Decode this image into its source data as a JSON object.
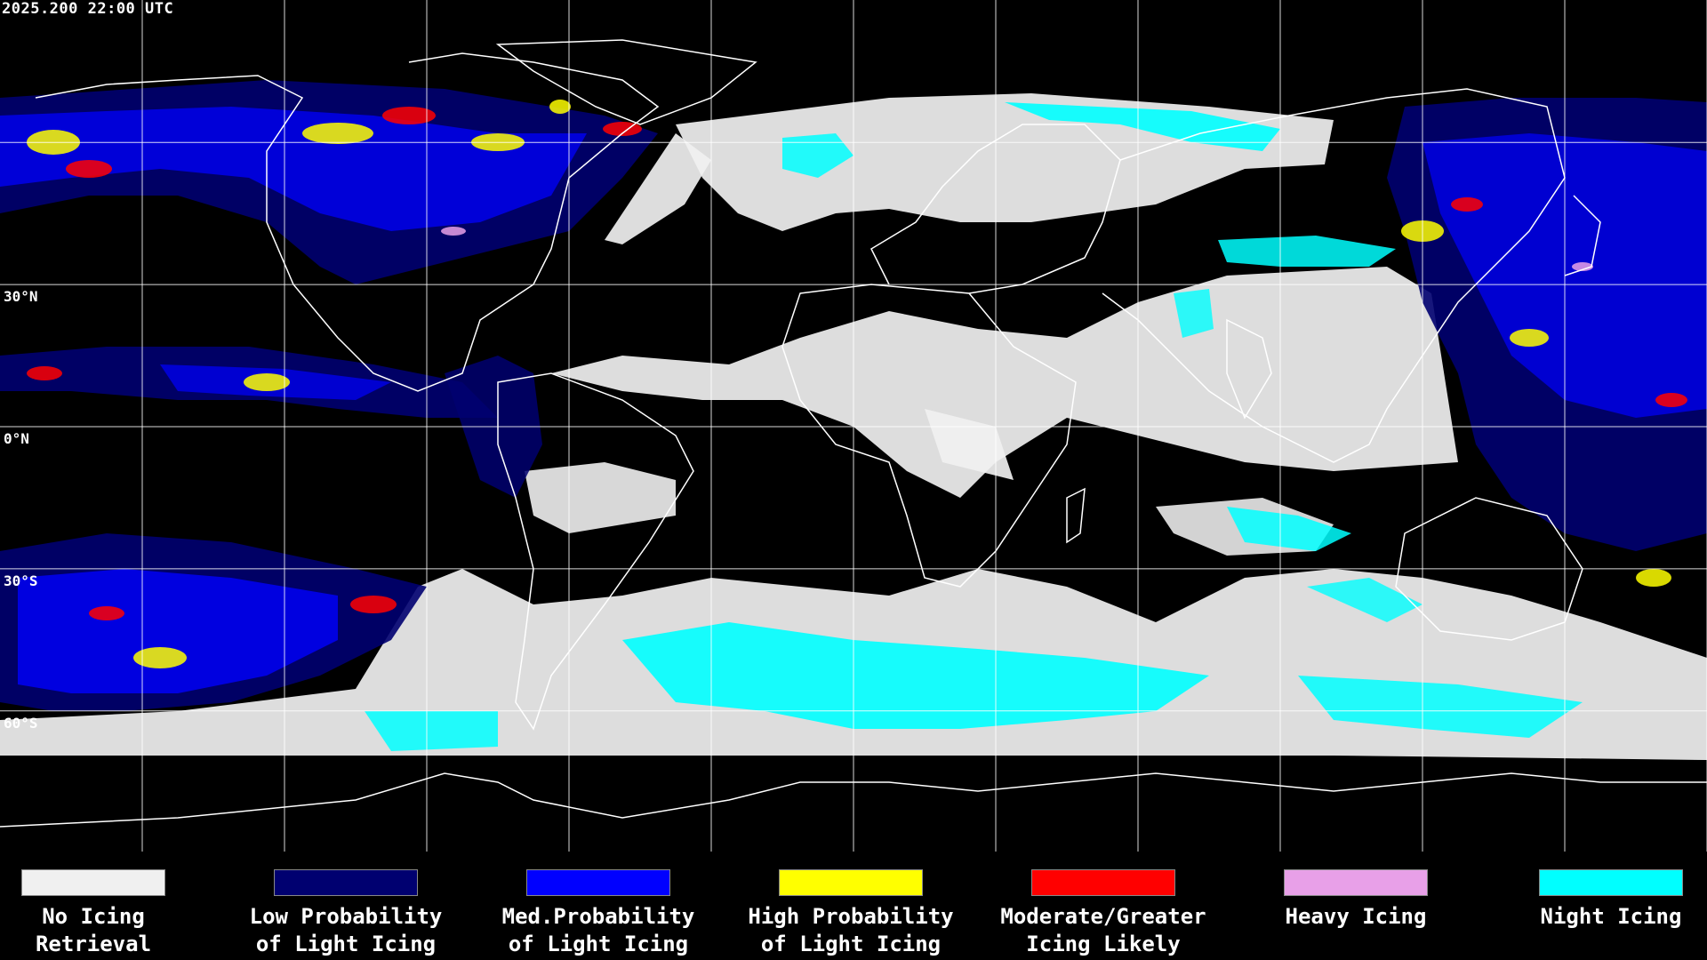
{
  "header": {
    "timestamp": "2025.200 22:00 UTC"
  },
  "grid": {
    "lat_labels": [
      {
        "text": "30°N",
        "lat": 30
      },
      {
        "text": "0°N",
        "lat": 0
      },
      {
        "text": "30°S",
        "lat": -30
      },
      {
        "text": "60°S",
        "lat": -60
      }
    ]
  },
  "legend": {
    "items": [
      {
        "label": "No Icing\nRetrieval",
        "color": "#f0f0f0"
      },
      {
        "label": "Low Probability\nof Light Icing",
        "color": "#000070"
      },
      {
        "label": "Med.Probability\nof Light Icing",
        "color": "#0000ff"
      },
      {
        "label": "High Probability\nof Light Icing",
        "color": "#ffff00"
      },
      {
        "label": "Moderate/Greater\nIcing Likely",
        "color": "#ff0000"
      },
      {
        "label": "Heavy Icing",
        "color": "#e8a0e8"
      },
      {
        "label": "Night Icing",
        "color": "#00ffff"
      }
    ]
  },
  "colors": {
    "background": "#000000",
    "coastline": "#ffffff",
    "gridline": "#ffffff",
    "no_icing": "#f0f0f0",
    "night_icing": "#00ffff",
    "low_prob": "#000070",
    "med_prob": "#0000ff",
    "high_prob": "#ffff00",
    "moderate": "#ff0000",
    "heavy": "#e8a0e8"
  }
}
